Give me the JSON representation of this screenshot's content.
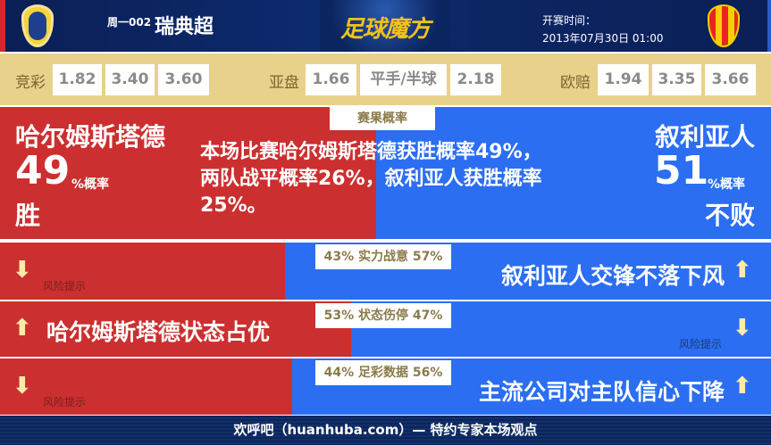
{
  "header": {
    "match_no": "周一002",
    "league": "瑞典超",
    "brand": "足球魔方",
    "start_label": "开赛时间：",
    "start_time": "2013年07月30日 01:00"
  },
  "odds": {
    "jingcai": {
      "label": "竞彩",
      "values": [
        "1.82",
        "3.40",
        "3.60"
      ]
    },
    "yapan": {
      "label": "亚盘",
      "values": [
        "1.66",
        "平手/半球",
        "2.18"
      ]
    },
    "oupei": {
      "label": "欧赔",
      "values": [
        "1.94",
        "3.35",
        "3.66"
      ]
    }
  },
  "result": {
    "tab": "赛果概率",
    "home": "哈尔姆斯塔德",
    "home_pct": "49",
    "pct_suffix": "%概率",
    "home_outcome": "胜",
    "away": "叙利亚人",
    "away_pct": "51",
    "away_outcome": "不败",
    "summary": "本场比赛哈尔姆斯塔德获胜概率49%，两队战平概率26%，叙利亚人获胜概率25%。",
    "home_share": 49
  },
  "rows": [
    {
      "label": "43% 实力战意 57%",
      "home_share": 43,
      "home_arrow": "down",
      "home_text": "",
      "away_arrow": "up",
      "away_text": "叙利亚人交锋不落下风",
      "risk": "风险提示",
      "risk_side": "home"
    },
    {
      "label": "53% 状态伤停 47%",
      "home_share": 53,
      "home_arrow": "up",
      "home_text": "哈尔姆斯塔德状态占优",
      "away_arrow": "down",
      "away_text": "",
      "risk": "风险提示",
      "risk_side": "away"
    },
    {
      "label": "44% 足彩数据 56%",
      "home_share": 44,
      "home_arrow": "down",
      "home_text": "",
      "away_arrow": "up",
      "away_text": "主流公司对主队信心下降",
      "risk": "风险提示",
      "risk_side": "home"
    }
  ],
  "footer": "欢呼吧（huanhuba.com）— 特约专家本场观点",
  "colors": {
    "home": "#cc2f2f",
    "away": "#2b6ef2",
    "odds_bg": "#e8d18a",
    "header": "#0d2a6e"
  }
}
